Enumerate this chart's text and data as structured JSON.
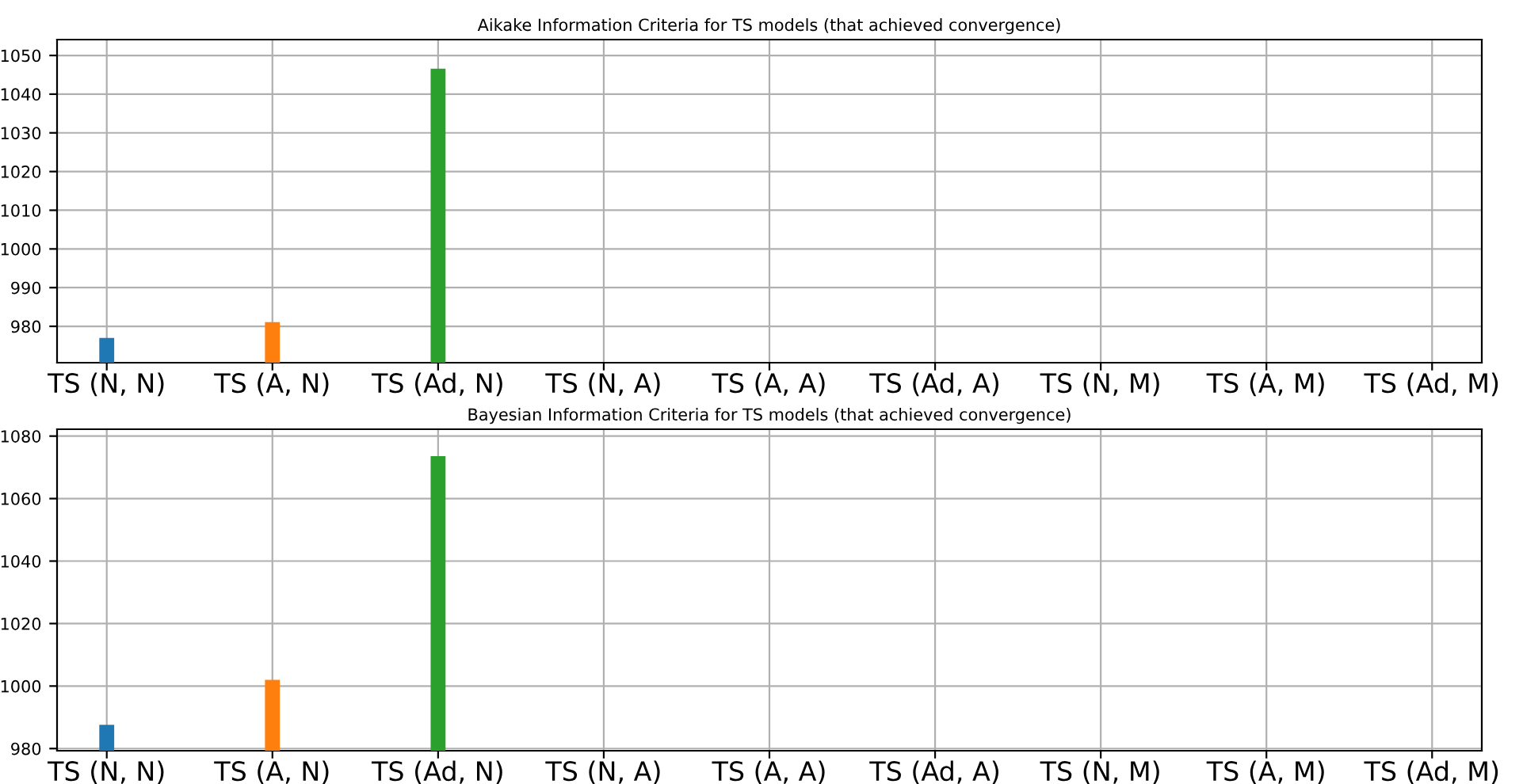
{
  "chart_data": [
    {
      "type": "bar",
      "title": "Aikake Information Criteria for TS models (that achieved convergence)",
      "categories": [
        "TS (N, N)",
        "TS (A, N)",
        "TS (Ad, N)",
        "TS (N, A)",
        "TS (A, A)",
        "TS (Ad, A)",
        "TS (N, M)",
        "TS (A, M)",
        "TS (Ad, M)"
      ],
      "values": [
        977.0,
        981.1,
        1046.6,
        null,
        null,
        null,
        null,
        null,
        null
      ],
      "colors": [
        "#1f77b4",
        "#ff7f0e",
        "#2ca02c",
        "#d62728",
        "#9467bd",
        "#8c564b",
        "#e377c2",
        "#7f7f7f",
        "#bcbd22"
      ],
      "ylim": [
        970.6,
        1054.1
      ],
      "yticks": [
        980,
        990,
        1000,
        1010,
        1020,
        1030,
        1040,
        1050
      ],
      "grid": true,
      "legend": false
    },
    {
      "type": "bar",
      "title": "Bayesian Information Criteria for TS models (that achieved convergence)",
      "categories": [
        "TS (N, N)",
        "TS (A, N)",
        "TS (Ad, N)",
        "TS (N, A)",
        "TS (A, A)",
        "TS (Ad, A)",
        "TS (N, M)",
        "TS (A, M)",
        "TS (Ad, M)"
      ],
      "values": [
        987.6,
        1002.0,
        1073.6,
        null,
        null,
        null,
        null,
        null,
        null
      ],
      "colors": [
        "#1f77b4",
        "#ff7f0e",
        "#2ca02c",
        "#d62728",
        "#9467bd",
        "#8c564b",
        "#e377c2",
        "#7f7f7f",
        "#bcbd22"
      ],
      "ylim": [
        979.3,
        1082.2
      ],
      "yticks": [
        980,
        1000,
        1020,
        1040,
        1060,
        1080
      ],
      "grid": true,
      "legend": false
    }
  ]
}
